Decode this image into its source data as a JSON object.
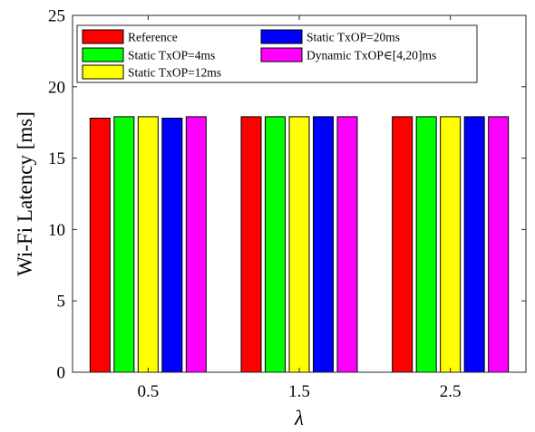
{
  "chart_data": {
    "type": "bar",
    "categories": [
      "0.5",
      "1.5",
      "2.5"
    ],
    "xlabel": "λ",
    "ylabel": "Wi-Fi Latency [ms]",
    "ylim": [
      0,
      25
    ],
    "yticks": [
      0,
      5,
      10,
      15,
      20,
      25
    ],
    "grid": false,
    "legend_position": "top-left",
    "series": [
      {
        "name": "Reference",
        "color": "#ff0000",
        "values": [
          17.8,
          17.9,
          17.9
        ]
      },
      {
        "name": "Static TxOP=4ms",
        "color": "#00ff00",
        "values": [
          17.9,
          17.9,
          17.9
        ]
      },
      {
        "name": "Static TxOP=12ms",
        "color": "#ffff00",
        "values": [
          17.9,
          17.9,
          17.9
        ]
      },
      {
        "name": "Static TxOP=20ms",
        "color": "#0000ff",
        "values": [
          17.8,
          17.9,
          17.9
        ]
      },
      {
        "name": "Dynamic TxOP∈[4,20]ms",
        "color": "#ff00ff",
        "values": [
          17.9,
          17.9,
          17.9
        ]
      }
    ]
  }
}
